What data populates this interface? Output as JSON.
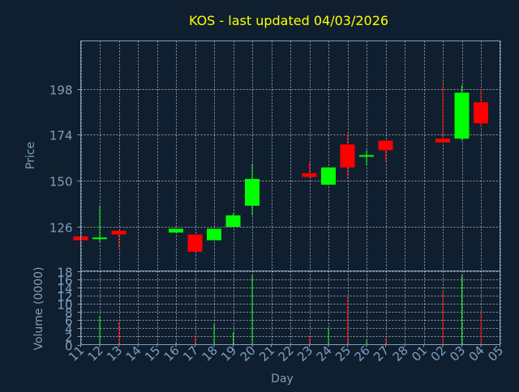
{
  "chart_data": {
    "type": "candlestick",
    "title": "KOS - last updated 04/03/2026",
    "xlabel": "Day",
    "x_tick_labels": [
      "11",
      "12",
      "13",
      "14",
      "15",
      "16",
      "17",
      "18",
      "19",
      "20",
      "21",
      "22",
      "23",
      "24",
      "25",
      "26",
      "27",
      "28",
      "01",
      "02",
      "03",
      "04",
      "05"
    ],
    "price_panel": {
      "ylabel": "Price",
      "y_ticks": [
        126,
        150,
        174,
        198
      ],
      "ylim": [
        103,
        223
      ],
      "grid": true
    },
    "volume_panel": {
      "ylabel": "Volume (0000)",
      "y_ticks": [
        0,
        2,
        4,
        6,
        8,
        10,
        12,
        14,
        16,
        18
      ],
      "ylim": [
        0,
        18
      ],
      "grid": true
    },
    "colors": {
      "background": "#0f1f2f",
      "up": "#00ff00",
      "down": "#ff0000",
      "axis_text": "#7f9fbf",
      "title": "#ffff00",
      "grid": "#ffffff"
    },
    "candles": [
      {
        "day": "11",
        "open": 121,
        "high": 121,
        "low": 119,
        "close": 119,
        "volume": 0
      },
      {
        "day": "12",
        "open": 120,
        "high": 137,
        "low": 118,
        "close": 120,
        "volume": 7
      },
      {
        "day": "13",
        "open": 124,
        "high": 124,
        "low": 115,
        "close": 122,
        "volume": 5.5
      },
      {
        "day": "16",
        "open": 123,
        "high": 125,
        "low": 123,
        "close": 125,
        "volume": 0.5
      },
      {
        "day": "17",
        "open": 122,
        "high": 122,
        "low": 113,
        "close": 113,
        "volume": 2
      },
      {
        "day": "18",
        "open": 119,
        "high": 125,
        "low": 119,
        "close": 125,
        "volume": 5
      },
      {
        "day": "19",
        "open": 126,
        "high": 133,
        "low": 126,
        "close": 132,
        "volume": 3
      },
      {
        "day": "20",
        "open": 137,
        "high": 159,
        "low": 132,
        "close": 151,
        "volume": 17
      },
      {
        "day": "23",
        "open": 154,
        "high": 160,
        "low": 152,
        "close": 152,
        "volume": 2
      },
      {
        "day": "24",
        "open": 148,
        "high": 157,
        "low": 148,
        "close": 157,
        "volume": 4
      },
      {
        "day": "25",
        "open": 169,
        "high": 175,
        "low": 151,
        "close": 157,
        "volume": 11.5
      },
      {
        "day": "26",
        "open": 163,
        "high": 166,
        "low": 158,
        "close": 163,
        "volume": 1
      },
      {
        "day": "27",
        "open": 171,
        "high": 171,
        "low": 160,
        "close": 166,
        "volume": 1.5
      },
      {
        "day": "02",
        "open": 172,
        "high": 200,
        "low": 170,
        "close": 170,
        "volume": 13
      },
      {
        "day": "03",
        "open": 172,
        "high": 200,
        "low": 171,
        "close": 196,
        "volume": 17
      },
      {
        "day": "04",
        "open": 191,
        "high": 198,
        "low": 178,
        "close": 180,
        "volume": 7.5
      }
    ]
  }
}
